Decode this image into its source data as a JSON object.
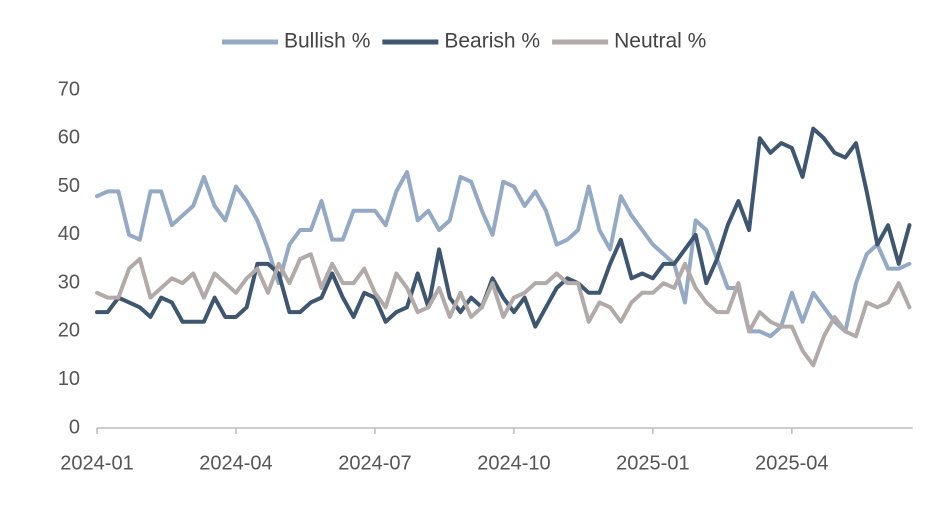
{
  "chart_data": {
    "type": "line",
    "categories": [
      "2024-01",
      null,
      null,
      null,
      null,
      null,
      null,
      null,
      null,
      null,
      null,
      null,
      null,
      "2024-04",
      null,
      null,
      null,
      null,
      null,
      null,
      null,
      null,
      null,
      null,
      null,
      null,
      "2024-07",
      null,
      null,
      null,
      null,
      null,
      null,
      null,
      null,
      null,
      null,
      null,
      null,
      "2024-10",
      null,
      null,
      null,
      null,
      null,
      null,
      null,
      null,
      null,
      null,
      null,
      null,
      "2025-01",
      null,
      null,
      null,
      null,
      null,
      null,
      null,
      null,
      null,
      null,
      null,
      null,
      "2025-04",
      null,
      null,
      null,
      null,
      null,
      null,
      null,
      null,
      null,
      null,
      null
    ],
    "series": [
      {
        "name": "Bullish %",
        "color": "#94a9c4",
        "values": [
          48,
          49,
          49,
          40,
          39,
          49,
          49,
          42,
          44,
          46,
          52,
          46,
          43,
          50,
          47,
          43,
          37,
          30,
          38,
          41,
          41,
          47,
          39,
          39,
          45,
          45,
          45,
          42,
          49,
          53,
          43,
          45,
          41,
          43,
          52,
          51,
          45,
          40,
          51,
          50,
          46,
          49,
          45,
          38,
          39,
          41,
          50,
          41,
          37,
          48,
          44,
          41,
          38,
          36,
          34,
          26,
          43,
          41,
          35,
          29,
          29,
          20,
          20,
          19,
          21,
          28,
          22,
          28,
          25,
          22,
          20,
          30,
          36,
          38,
          33,
          33,
          34
        ]
      },
      {
        "name": "Bearish %",
        "color": "#3e5670",
        "values": [
          24,
          24,
          27,
          26,
          25,
          23,
          27,
          26,
          22,
          22,
          22,
          27,
          23,
          23,
          25,
          34,
          34,
          32,
          24,
          24,
          26,
          27,
          32,
          27,
          23,
          28,
          27,
          22,
          24,
          25,
          32,
          25,
          37,
          27,
          24,
          27,
          25,
          31,
          27,
          24,
          27,
          21,
          25,
          29,
          31,
          30,
          28,
          28,
          34,
          39,
          31,
          32,
          31,
          34,
          34,
          37,
          40,
          30,
          35,
          42,
          47,
          41,
          60,
          57,
          59,
          58,
          52,
          62,
          60,
          57,
          56,
          59,
          49,
          38,
          42,
          34,
          42
        ]
      },
      {
        "name": "Neutral %",
        "color": "#b2aaa8",
        "values": [
          28,
          27,
          27,
          33,
          35,
          27,
          29,
          31,
          30,
          32,
          27,
          32,
          30,
          28,
          31,
          33,
          28,
          34,
          30,
          35,
          36,
          29,
          34,
          30,
          30,
          33,
          28,
          25,
          32,
          29,
          24,
          25,
          29,
          23,
          28,
          23,
          25,
          30,
          23,
          27,
          28,
          30,
          30,
          32,
          30,
          30,
          22,
          26,
          25,
          22,
          26,
          28,
          28,
          30,
          29,
          34,
          29,
          26,
          24,
          24,
          30,
          20,
          24,
          22,
          21,
          21,
          16,
          13,
          19,
          23,
          20,
          19,
          26,
          25,
          26,
          30,
          25
        ]
      }
    ],
    "ylim": [
      0,
      70
    ],
    "yticks": [
      0,
      10,
      20,
      30,
      40,
      50,
      60,
      70
    ],
    "legend": "top"
  }
}
